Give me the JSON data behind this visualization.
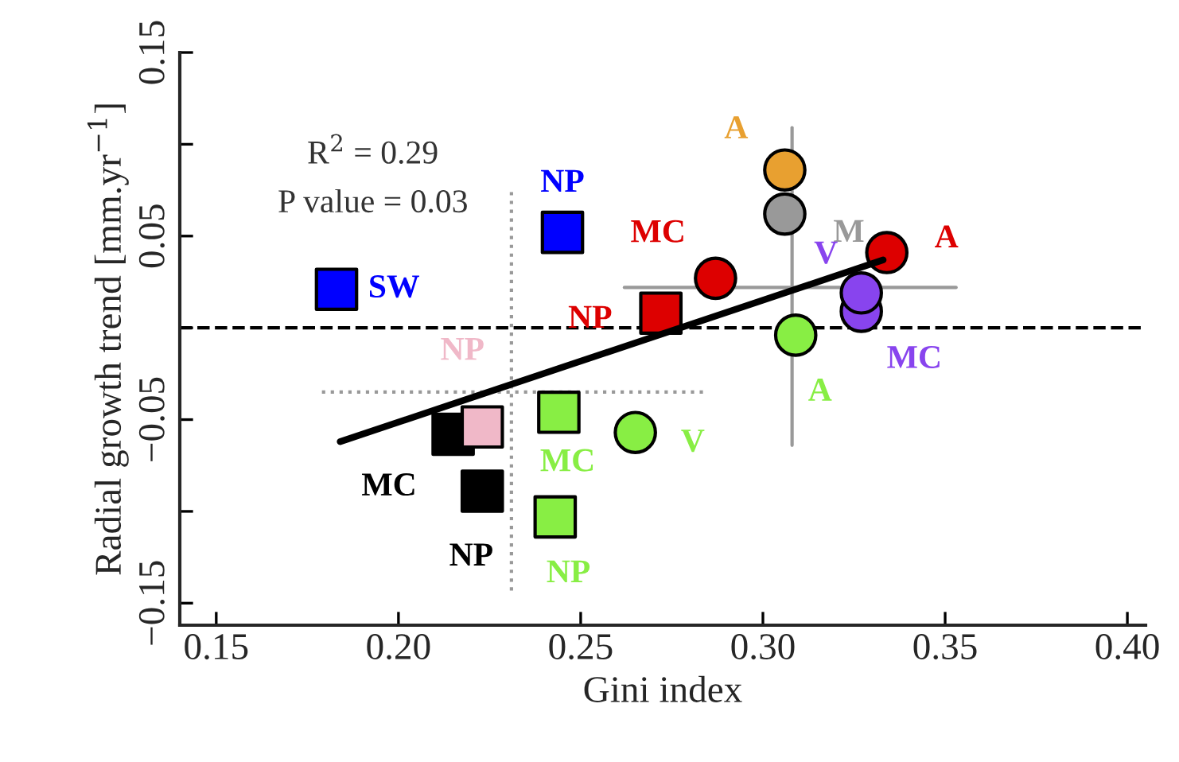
{
  "chart_data": {
    "type": "scatter",
    "xlabel": "Gini index",
    "ylabel": "Radial growth trend [mm.yr$^{−1}$]",
    "xlim": [
      0.14,
      0.405
    ],
    "ylim": [
      -0.162,
      0.15
    ],
    "xticks": [
      {
        "value": 0.15,
        "label": "0.15"
      },
      {
        "value": 0.2,
        "label": "0.20"
      },
      {
        "value": 0.25,
        "label": "0.25"
      },
      {
        "value": 0.3,
        "label": "0.30"
      },
      {
        "value": 0.35,
        "label": "0.35"
      },
      {
        "value": 0.4,
        "label": "0.40"
      }
    ],
    "yticks": [
      {
        "value": -0.15,
        "label": "−0.15"
      },
      {
        "value": -0.1,
        "label": null
      },
      {
        "value": -0.05,
        "label": "−0.05"
      },
      {
        "value": 0,
        "label": null
      },
      {
        "value": 0.05,
        "label": "0.05"
      },
      {
        "value": 0.1,
        "label": null
      },
      {
        "value": 0.15,
        "label": "0.15"
      }
    ],
    "grid": false,
    "legend": false,
    "annotations": [
      "R$^{2}$ = 0.29",
      "P value = 0.03"
    ],
    "ref_lines": [
      {
        "axis": "y",
        "value": 0,
        "color": "#000000",
        "line_style": "dashed"
      }
    ],
    "series": [
      {
        "name": "SW",
        "color": "#0000ff",
        "marker": "square",
        "x": [
          0.183
        ],
        "values": [
          0.021
        ]
      },
      {
        "name": "NP",
        "color": "#0000ff",
        "marker": "square",
        "x": [
          0.245
        ],
        "values": [
          0.052
        ]
      },
      {
        "name": "NP",
        "color": "#dd0000",
        "marker": "square",
        "x": [
          0.272
        ],
        "values": [
          0.008
        ]
      },
      {
        "name": "MC",
        "color": "#dd0000",
        "marker": "circle",
        "x": [
          0.287
        ],
        "values": [
          0.027
        ]
      },
      {
        "name": "A",
        "color": "#e8a030",
        "marker": "circle",
        "x": [
          0.306
        ],
        "values": [
          0.086
        ]
      },
      {
        "name": "M",
        "color": "#999999",
        "marker": "circle",
        "x": [
          0.306
        ],
        "values": [
          0.062
        ]
      },
      {
        "name": "A",
        "color": "#dd0000",
        "marker": "circle",
        "x": [
          0.334
        ],
        "values": [
          0.041
        ]
      },
      {
        "name": "MC",
        "color": "#8844ee",
        "marker": "circle",
        "x": [
          0.327
        ],
        "values": [
          0.009
        ]
      },
      {
        "name": "V",
        "color": "#8844ee",
        "marker": "circle",
        "x": [
          0.327
        ],
        "values": [
          0.019
        ]
      },
      {
        "name": "A",
        "color": "#88ee44",
        "marker": "circle",
        "x": [
          0.309
        ],
        "values": [
          -0.004
        ]
      },
      {
        "name": "V",
        "color": "#88ee44",
        "marker": "circle",
        "x": [
          0.265
        ],
        "values": [
          -0.057
        ]
      },
      {
        "name": "MC",
        "color": "#88ee44",
        "marker": "square",
        "x": [
          0.244
        ],
        "values": [
          -0.046
        ]
      },
      {
        "name": "NP",
        "color": "#88ee44",
        "marker": "square",
        "x": [
          0.243
        ],
        "values": [
          -0.103
        ]
      },
      {
        "name": "MC",
        "color": "#000000",
        "marker": "square",
        "x": [
          0.215
        ],
        "values": [
          -0.058
        ]
      },
      {
        "name": "NP",
        "color": "#f0b8c8",
        "marker": "square",
        "x": [
          0.223
        ],
        "values": [
          -0.054
        ]
      },
      {
        "name": "NP",
        "color": "#000000",
        "marker": "square",
        "x": [
          0.223
        ],
        "values": [
          -0.089
        ]
      },
      {
        "type": "line",
        "color": "#000000",
        "line_style": "solid",
        "marker": "none",
        "x": [
          0.184,
          0.333
        ],
        "values": [
          -0.062,
          0.037
        ]
      },
      {
        "type": "line",
        "color": "#999999",
        "line_style": "dotted",
        "marker": "none",
        "x": [
          0.231,
          0.231
        ],
        "values": [
          0.074,
          -0.144
        ]
      },
      {
        "type": "line",
        "color": "#999999",
        "line_style": "dotted",
        "marker": "none",
        "x": [
          0.179,
          0.284
        ],
        "values": [
          -0.035,
          -0.035
        ]
      },
      {
        "type": "line",
        "color": "#999999",
        "line_style": "solid",
        "marker": "none",
        "x": [
          0.308,
          0.308
        ],
        "values": [
          0.109,
          -0.064
        ]
      },
      {
        "type": "line",
        "color": "#999999",
        "line_style": "solid",
        "marker": "none",
        "x": [
          0.262,
          0.353
        ],
        "values": [
          0.022,
          0.022
        ]
      }
    ]
  }
}
